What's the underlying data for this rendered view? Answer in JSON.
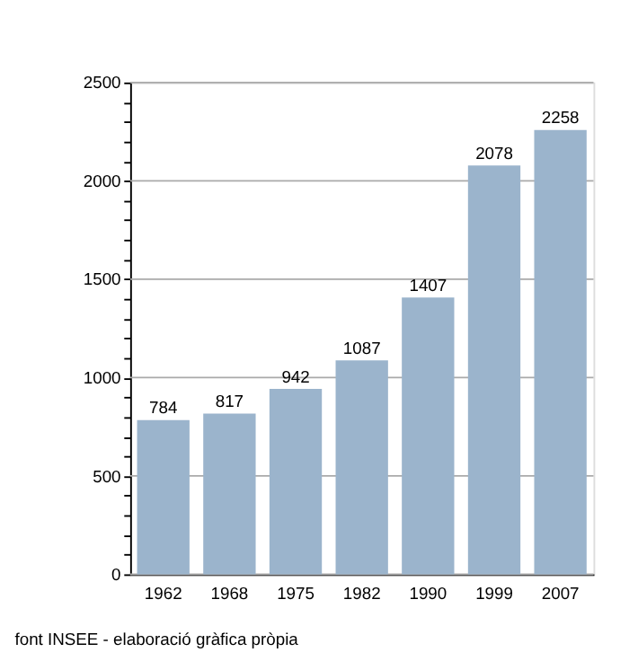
{
  "chart_data": {
    "type": "bar",
    "categories": [
      "1962",
      "1968",
      "1975",
      "1982",
      "1990",
      "1999",
      "2007"
    ],
    "values": [
      784,
      817,
      942,
      1087,
      1407,
      2078,
      2258
    ],
    "color": "#9bb4cc",
    "ylim": [
      0,
      2500
    ],
    "yticks": [
      0,
      {
        "value": 100,
        "label": null
      },
      {
        "value": 200,
        "label": null
      },
      {
        "value": 300,
        "label": null
      },
      {
        "value": 400,
        "label": null
      },
      500,
      {
        "value": 600,
        "label": null
      },
      {
        "value": 700,
        "label": null
      },
      {
        "value": 800,
        "label": null
      },
      {
        "value": 900,
        "label": null
      },
      1000,
      {
        "value": 1100,
        "label": null
      },
      {
        "value": 1200,
        "label": null
      },
      {
        "value": 1300,
        "label": null
      },
      {
        "value": 1400,
        "label": null
      },
      1500,
      {
        "value": 1600,
        "label": null
      },
      {
        "value": 1700,
        "label": null
      },
      {
        "value": 1800,
        "label": null
      },
      {
        "value": 1900,
        "label": null
      },
      2000,
      {
        "value": 2100,
        "label": null
      },
      {
        "value": 2200,
        "label": null
      },
      {
        "value": 2300,
        "label": null
      },
      {
        "value": 2400,
        "label": null
      },
      2500
    ],
    "grid": "y",
    "data_labels": true,
    "annotations": [
      "font INSEE - elaboració gràfica pròpia"
    ]
  }
}
